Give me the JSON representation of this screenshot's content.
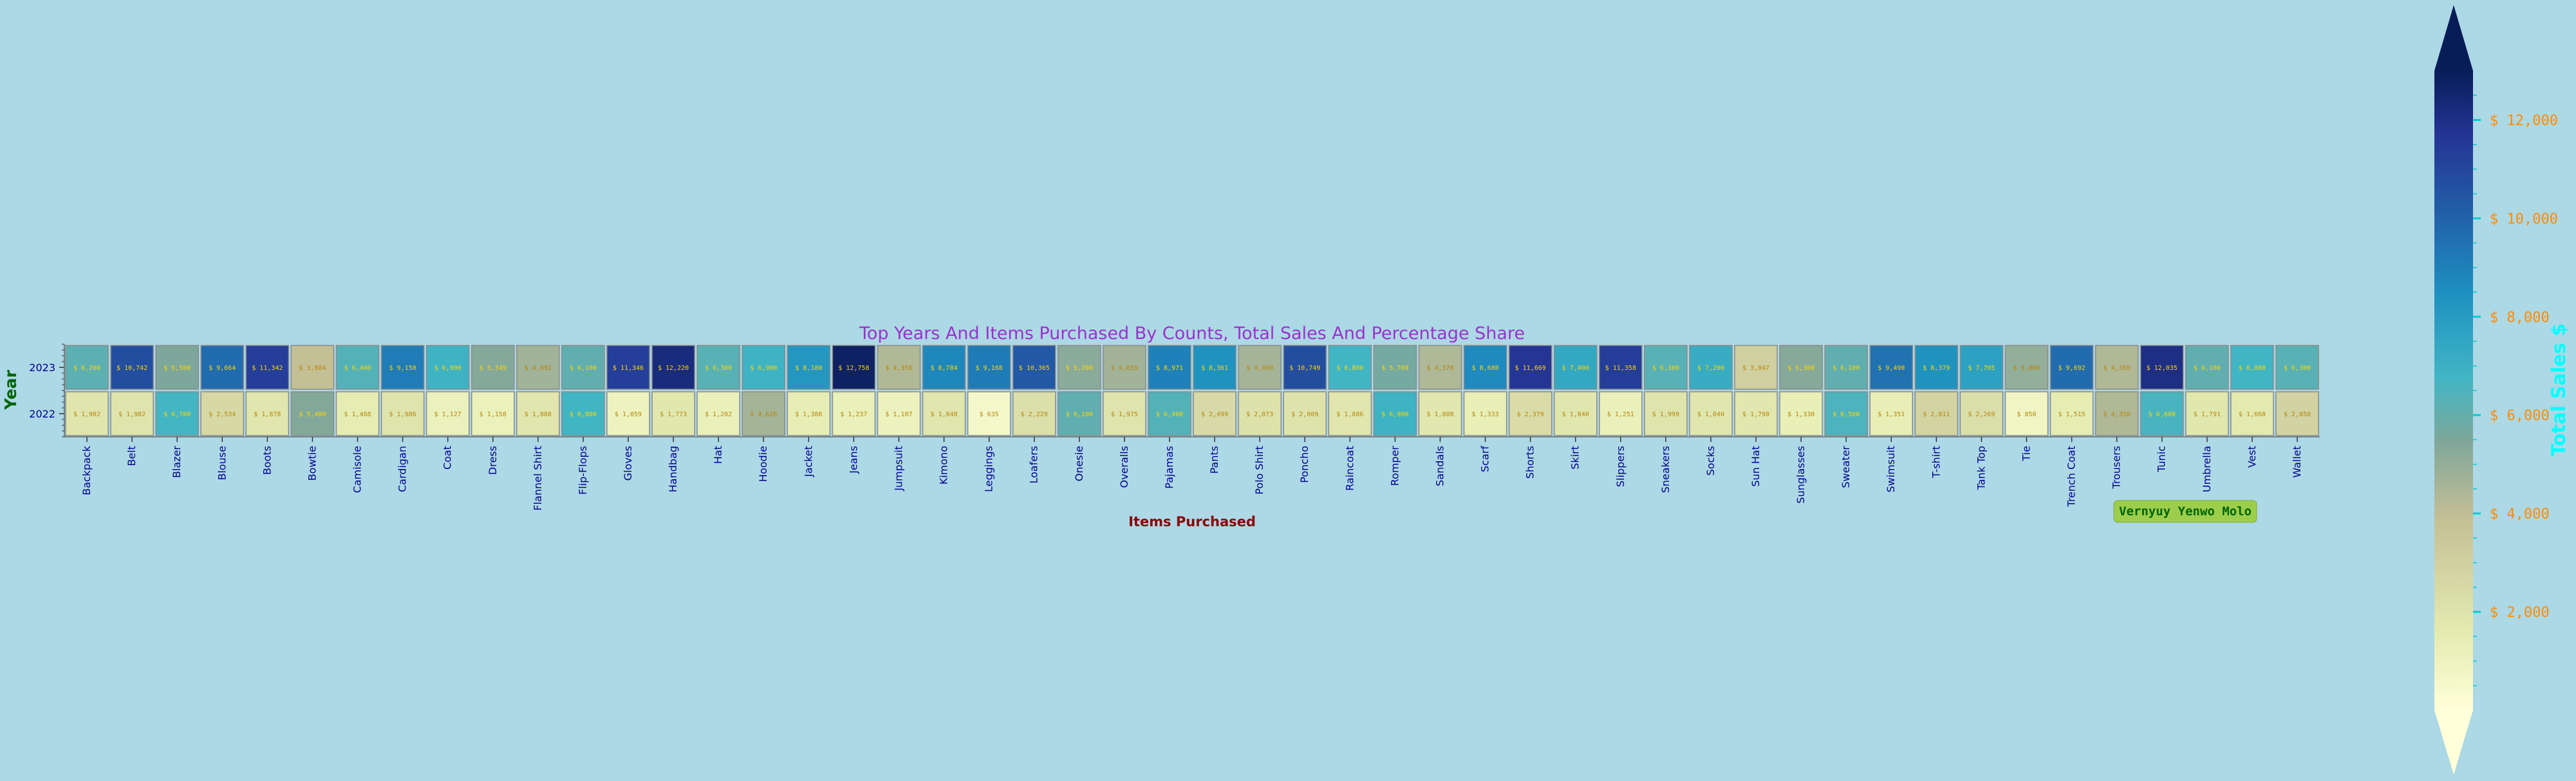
{
  "chart_data": {
    "type": "heatmap",
    "title": "Top Years And Items Purchased By Counts, Total Sales And Percentage Share",
    "xlabel": "Items Purchased",
    "ylabel": "Year",
    "years": [
      "2023",
      "2022"
    ],
    "categories": [
      "Backpack",
      "Belt",
      "Blazer",
      "Blouse",
      "Boots",
      "Bowtie",
      "Camisole",
      "Cardigan",
      "Coat",
      "Dress",
      "Flannel Shirt",
      "Flip-Flops",
      "Gloves",
      "Handbag",
      "Hat",
      "Hoodie",
      "Jacket",
      "Jeans",
      "Jumpsuit",
      "Kimono",
      "Leggings",
      "Loafers",
      "Onesie",
      "Overalls",
      "Pajamas",
      "Pants",
      "Polo Shirt",
      "Poncho",
      "Raincoat",
      "Romper",
      "Sandals",
      "Scarf",
      "Shorts",
      "Skirt",
      "Slippers",
      "Sneakers",
      "Socks",
      "Sun Hat",
      "Sunglasses",
      "Sweater",
      "Swimsuit",
      "T-shirt",
      "Tank Top",
      "Tie",
      "Trench Coat",
      "Trousers",
      "Tunic",
      "Umbrella",
      "Vest",
      "Wallet"
    ],
    "values_2023": [
      6200,
      10742,
      5500,
      9664,
      11342,
      3884,
      6400,
      9150,
      6900,
      5349,
      4692,
      6100,
      11346,
      12220,
      6300,
      6900,
      8180,
      12758,
      4356,
      8784,
      9168,
      10365,
      5200,
      4659,
      8971,
      8361,
      4600,
      10749,
      6800,
      5700,
      4370,
      8680,
      11669,
      7400,
      11358,
      6300,
      7200,
      3047,
      5300,
      6100,
      9490,
      8379,
      7705,
      5000,
      9692,
      4350,
      12035,
      6100,
      6800,
      6300
    ],
    "values_2022": [
      1902,
      1982,
      6700,
      2534,
      1878,
      5400,
      1488,
      1986,
      1127,
      1158,
      1888,
      6800,
      1059,
      1773,
      1202,
      4626,
      1388,
      1237,
      1107,
      1848,
      635,
      2229,
      6100,
      1975,
      6400,
      2499,
      2073,
      2009,
      1886,
      6900,
      1808,
      1333,
      2379,
      1840,
      1251,
      1999,
      1840,
      1798,
      1330,
      6500,
      1351,
      2811,
      2269,
      850,
      1515,
      4350,
      6600,
      1791,
      1668,
      2850
    ],
    "labels_2023": [
      "$ 6,200",
      "$ 10,742",
      "$ 5,500",
      "$ 9,664",
      "$ 11,342",
      "$ 3,884",
      "$ 6,400",
      "$ 9,150",
      "$ 6,900",
      "$ 5,349",
      "$ 4,692",
      "$ 6,100",
      "$ 11,346",
      "$ 12,220",
      "$ 6,300",
      "$ 6,900",
      "$ 8,180",
      "$ 12,758",
      "$ 4,356",
      "$ 8,784",
      "$ 9,168",
      "$ 10,365",
      "$ 5,200",
      "$ 4,659",
      "$ 8,971",
      "$ 8,361",
      "$ 4,600",
      "$ 10,749",
      "$ 6,800",
      "$ 5,700",
      "$ 4,370",
      "$ 8,680",
      "$ 11,669",
      "$ 7,400",
      "$ 11,358",
      "$ 6,300",
      "$ 7,200",
      "$ 3,047",
      "$ 5,300",
      "$ 6,100",
      "$ 9,490",
      "$ 8,379",
      "$ 7,705",
      "$ 5,000",
      "$ 9,692",
      "$ 4,350",
      "$ 12,035",
      "$ 6,100",
      "$ 6,800",
      "$ 6,300"
    ],
    "labels_2022": [
      "$ 1,902",
      "$ 1,982",
      "$ 6,700",
      "$ 2,534",
      "$ 1,878",
      "$ 5,400",
      "$ 1,488",
      "$ 1,986",
      "$ 1,127",
      "$ 1,158",
      "$ 1,888",
      "$ 6,800",
      "$ 1,059",
      "$ 1,773",
      "$ 1,202",
      "$ 4,626",
      "$ 1,388",
      "$ 1,237",
      "$ 1,107",
      "$ 1,848",
      "$ 635",
      "$ 2,229",
      "$ 6,100",
      "$ 1,975",
      "$ 6,400",
      "$ 2,499",
      "$ 2,073",
      "$ 2,009",
      "$ 1,886",
      "$ 6,900",
      "$ 1,808",
      "$ 1,333",
      "$ 2,379",
      "$ 1,840",
      "$ 1,251",
      "$ 1,999",
      "$ 1,840",
      "$ 1,798",
      "$ 1,330",
      "$ 6,500",
      "$ 1,351",
      "$ 2,811",
      "$ 2,269",
      "$ 850",
      "$ 1,515",
      "$ 4,350",
      "$ 6,600",
      "$ 1,791",
      "$ 1,668",
      "$ 2,850"
    ],
    "colorbar": {
      "label": "Total Sales $",
      "range": [
        0,
        13000
      ],
      "ticks": [
        2000,
        4000,
        6000,
        8000,
        10000,
        12000
      ],
      "tick_labels": [
        "$ 2,000",
        "$ 4,000",
        "$ 6,000",
        "$ 8,000",
        "$ 10,000",
        "$ 12,000"
      ],
      "extend": "both"
    },
    "colors": {
      "background": "#add8e6",
      "colormap": [
        "#ffffd9",
        "#e4ecb1",
        "#c4bf95",
        "#7fa79a",
        "#41b6c4",
        "#1d91c0",
        "#225ea8",
        "#253494",
        "#081d58"
      ],
      "title": "#9932cc",
      "xlabel": "#8b0000",
      "ylabel": "#006400",
      "ticks": "#00008b",
      "colorbar_ticks": "#ff8c00",
      "colorbar_label": "#00ffff",
      "cell_text_light": "#ffd700",
      "cell_text_dark": "#b8860b"
    }
  },
  "watermark": {
    "text": "Vernyuy Yenwo Molo",
    "bg": "#9acd32"
  }
}
